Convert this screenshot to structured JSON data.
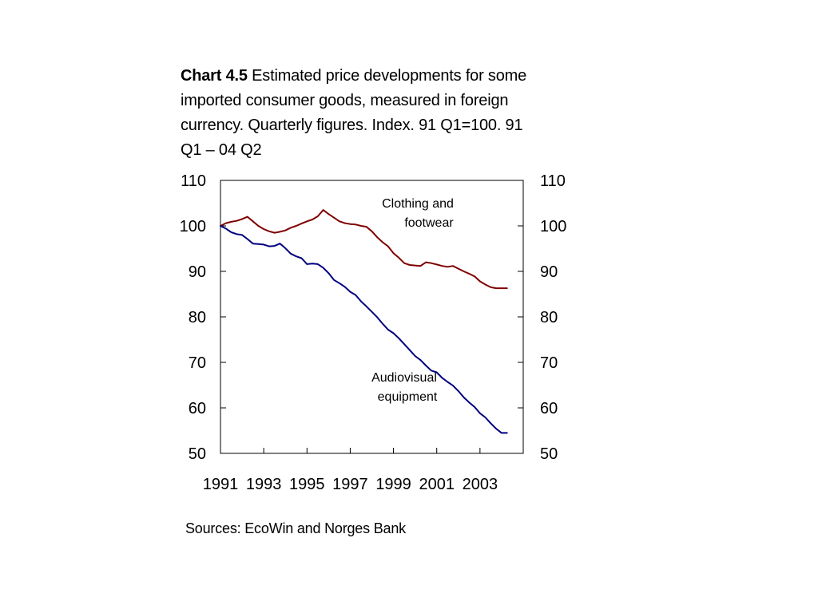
{
  "title": {
    "label": "Chart 4.5",
    "text": "Estimated price developments for some imported consumer goods, measured in foreign currency. Quarterly figures. Index. 91 Q1=100. 91 Q1 – 04 Q2"
  },
  "source": "Sources: EcoWin and Norges Bank",
  "chart_data": {
    "type": "line",
    "title": "Estimated price developments for some imported consumer goods, measured in foreign currency. Quarterly figures. Index. 91 Q1=100. 91 Q1 – 04 Q2",
    "xlabel": "",
    "ylabel": "",
    "ylim": [
      50,
      110
    ],
    "xlim": [
      "1991 Q1",
      "2005 Q1"
    ],
    "y_ticks": [
      "50",
      "60",
      "70",
      "80",
      "90",
      "100",
      "110"
    ],
    "y_ticks_right": [
      "50",
      "60",
      "70",
      "80",
      "90",
      "100",
      "110"
    ],
    "x_ticks": [
      "1991",
      "1993",
      "1995",
      "1997",
      "1999",
      "2001",
      "2003"
    ],
    "grid": false,
    "x": [
      "1991 Q1",
      "1991 Q2",
      "1991 Q3",
      "1991 Q4",
      "1992 Q1",
      "1992 Q2",
      "1992 Q3",
      "1992 Q4",
      "1993 Q1",
      "1993 Q2",
      "1993 Q3",
      "1993 Q4",
      "1994 Q1",
      "1994 Q2",
      "1994 Q3",
      "1994 Q4",
      "1995 Q1",
      "1995 Q2",
      "1995 Q3",
      "1995 Q4",
      "1996 Q1",
      "1996 Q2",
      "1996 Q3",
      "1996 Q4",
      "1997 Q1",
      "1997 Q2",
      "1997 Q3",
      "1997 Q4",
      "1998 Q1",
      "1998 Q2",
      "1998 Q3",
      "1998 Q4",
      "1999 Q1",
      "1999 Q2",
      "1999 Q3",
      "1999 Q4",
      "2000 Q1",
      "2000 Q2",
      "2000 Q3",
      "2000 Q4",
      "2001 Q1",
      "2001 Q2",
      "2001 Q3",
      "2001 Q4",
      "2002 Q1",
      "2002 Q2",
      "2002 Q3",
      "2002 Q4",
      "2003 Q1",
      "2003 Q2",
      "2003 Q3",
      "2003 Q4",
      "2004 Q1",
      "2004 Q2"
    ],
    "series": [
      {
        "name": "Clothing and footwear",
        "color": "#7f0000",
        "annotation_lines": [
          "Clothing and",
          "footwear"
        ],
        "values": [
          100,
          100.6,
          100.9,
          101.1,
          101.5,
          102.0,
          101.0,
          100.0,
          99.3,
          98.8,
          98.5,
          98.7,
          99.0,
          99.6,
          100.0,
          100.5,
          101.0,
          101.4,
          102.1,
          103.5,
          102.6,
          101.8,
          101.0,
          100.6,
          100.4,
          100.3,
          100.0,
          99.8,
          98.8,
          97.5,
          96.4,
          95.5,
          94.0,
          93.0,
          91.8,
          91.4,
          91.3,
          91.2,
          92.0,
          91.8,
          91.5,
          91.2,
          91.0,
          91.2,
          90.6,
          90.0,
          89.5,
          88.9,
          87.8,
          87.1,
          86.5,
          86.3,
          86.3,
          86.3
        ]
      },
      {
        "name": "Audiovisual equipment",
        "color": "#000080",
        "annotation_lines": [
          "Audiovisual",
          "equipment"
        ],
        "values": [
          100,
          99.4,
          98.6,
          98.2,
          98.0,
          97.1,
          96.1,
          96.0,
          95.9,
          95.5,
          95.6,
          96.1,
          95.1,
          93.9,
          93.3,
          92.9,
          91.6,
          91.7,
          91.6,
          90.8,
          89.6,
          88.1,
          87.4,
          86.6,
          85.5,
          84.8,
          83.4,
          82.3,
          81.1,
          79.9,
          78.5,
          77.2,
          76.4,
          75.3,
          74.0,
          72.7,
          71.4,
          70.5,
          69.3,
          68.2,
          67.8,
          66.6,
          65.7,
          64.9,
          63.7,
          62.3,
          61.2,
          60.2,
          58.8,
          57.9,
          56.6,
          55.4,
          54.5,
          54.5
        ]
      }
    ]
  }
}
